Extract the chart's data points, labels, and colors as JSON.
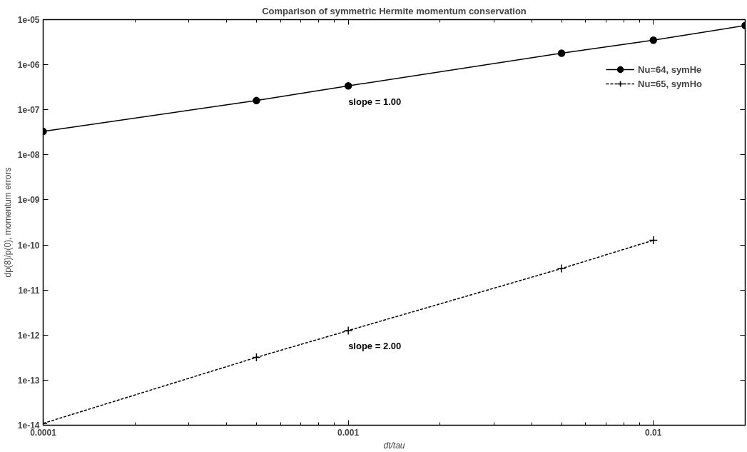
{
  "chart_data": {
    "type": "line",
    "title": "Comparison of symmetric Hermite momentum conservation",
    "xlabel": "dt/tau",
    "ylabel": "dp(8)/p(0), momentum errors",
    "log": "xy",
    "grid": false,
    "legend": "top right",
    "xlim": [
      0.0001,
      0.02
    ],
    "xticks": [
      0.0001,
      0.001,
      0.01
    ],
    "ylim": [
      1e-14,
      1e-05
    ],
    "yticks": [
      {
        "value": 1e-14,
        "label": "1e-14"
      },
      {
        "value": 1e-13,
        "label": "1e-13"
      },
      {
        "value": 1e-12,
        "label": "1e-12"
      },
      {
        "value": 1e-11,
        "label": "1e-11"
      },
      {
        "value": 1e-10,
        "label": "1e-10"
      },
      {
        "value": 1e-09,
        "label": "1e-09"
      },
      {
        "value": 1e-08,
        "label": "1e-08"
      },
      {
        "value": 1e-07,
        "label": "1e-07"
      },
      {
        "value": 1e-06,
        "label": "1e-06"
      },
      {
        "value": 1e-05,
        "label": "1e-05"
      }
    ],
    "series": [
      {
        "name": "Nu=64, symHe",
        "color": "#000000",
        "marker": "circle",
        "line_style": "solid",
        "x": [
          0.0001,
          0.0005,
          0.001,
          0.005,
          0.01,
          0.02
        ],
        "values": [
          3.3e-08,
          1.6e-07,
          3.4e-07,
          1.8e-06,
          3.5e-06,
          7.4e-06
        ]
      },
      {
        "name": "Nu=65, symHo",
        "color": "#000000",
        "marker": "cross",
        "line_style": "dashed",
        "x": [
          0.0001,
          0.0005,
          0.001,
          0.005,
          0.01
        ],
        "values": [
          1.1e-14,
          3.2e-13,
          1.26e-12,
          3e-11,
          1.27e-10
        ]
      }
    ],
    "annotations": [
      "slope = 1.00",
      "slope = 2.00"
    ]
  }
}
